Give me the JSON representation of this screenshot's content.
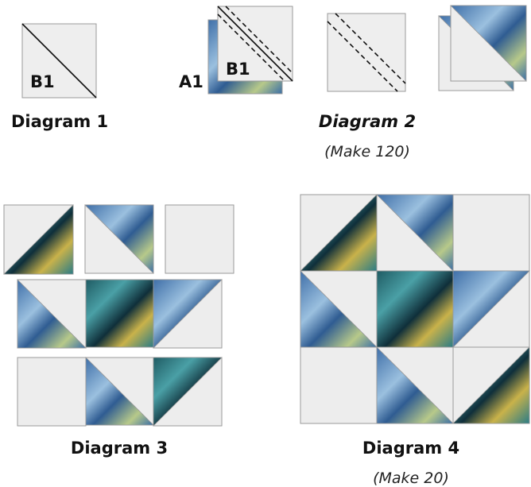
{
  "diagram1": {
    "label": "B1",
    "caption": "Diagram 1"
  },
  "diagram2": {
    "label_back": "A1",
    "label_front": "B1",
    "caption": "Diagram 2",
    "note": "(Make 120)"
  },
  "diagram3": {
    "caption": "Diagram 3"
  },
  "diagram4": {
    "caption": "Diagram 4",
    "note": "(Make 20)"
  }
}
